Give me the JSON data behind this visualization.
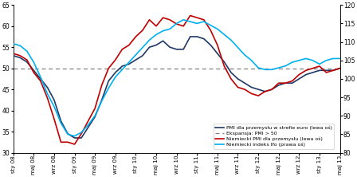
{
  "title": "",
  "ylim_left": [
    30,
    65
  ],
  "ylim_right": [
    80,
    120
  ],
  "yticks_left": [
    30,
    35,
    40,
    45,
    50,
    55,
    60,
    65
  ],
  "yticks_right": [
    80,
    85,
    90,
    95,
    100,
    105,
    110,
    115,
    120
  ],
  "expansion_line": 50,
  "x_labels": [
    "sty 08",
    "maj 08",
    "wrz 08",
    "sty 09",
    "maj 09",
    "wrz 09",
    "sty 10",
    "maj 10",
    "wrz 10",
    "sty 11",
    "maj 11",
    "wrz 11",
    "sty 12",
    "maj 12",
    "wrz 12",
    "sty 13",
    "maj 13"
  ],
  "color_euro_pmi": "#1f3864",
  "color_german_pmi": "#c00000",
  "color_ifo": "#00b0f0",
  "color_expansion": "#808080",
  "legend_labels": [
    "PMI dla przemysłu w strefie euro (lewa oś)",
    "Ekspansja: PMI > 50",
    "Niemiecki PMI dla przemysłu (lewa oś)",
    "Niemiecki indeks Ifo (prawa oś)"
  ],
  "euro_pmi": [
    53.0,
    52.5,
    51.5,
    49.5,
    47.5,
    45.5,
    42.5,
    37.5,
    34.5,
    33.5,
    33.5,
    36.0,
    38.5,
    42.5,
    47.0,
    49.0,
    50.5,
    51.0,
    52.0,
    53.0,
    55.0,
    55.5,
    56.5,
    55.0,
    54.5,
    54.5,
    57.5,
    57.5,
    57.0,
    55.5,
    53.5,
    51.5,
    49.0,
    47.5,
    46.5,
    45.5,
    45.0,
    44.5,
    45.0,
    46.0,
    46.5,
    46.5,
    47.5,
    48.5,
    49.0,
    49.5,
    49.5,
    49.5,
    50.0
  ],
  "german_pmi": [
    53.5,
    53.0,
    52.0,
    49.0,
    47.0,
    43.0,
    38.0,
    32.5,
    32.5,
    32.0,
    34.5,
    37.5,
    40.5,
    46.0,
    50.0,
    52.0,
    54.5,
    55.5,
    57.5,
    59.0,
    61.5,
    60.0,
    62.0,
    61.5,
    60.5,
    60.0,
    62.5,
    62.0,
    61.5,
    59.0,
    55.5,
    50.5,
    47.5,
    45.5,
    45.0,
    44.0,
    43.5,
    44.5,
    45.0,
    46.5,
    46.5,
    47.0,
    48.5,
    49.5,
    50.0,
    50.5,
    49.0,
    49.5,
    50.0
  ],
  "ifo": [
    109.5,
    109.0,
    107.5,
    104.5,
    100.5,
    96.0,
    92.5,
    88.0,
    85.0,
    84.5,
    85.5,
    87.5,
    90.0,
    94.0,
    97.5,
    100.5,
    102.5,
    104.5,
    106.5,
    108.5,
    110.5,
    112.0,
    113.0,
    113.5,
    115.0,
    116.0,
    115.5,
    115.0,
    115.5,
    114.5,
    113.5,
    112.0,
    110.5,
    108.5,
    106.5,
    105.0,
    103.0,
    102.5,
    102.5,
    103.0,
    103.5,
    104.5,
    105.0,
    105.5,
    105.0,
    104.0,
    105.0,
    105.5,
    105.5
  ]
}
